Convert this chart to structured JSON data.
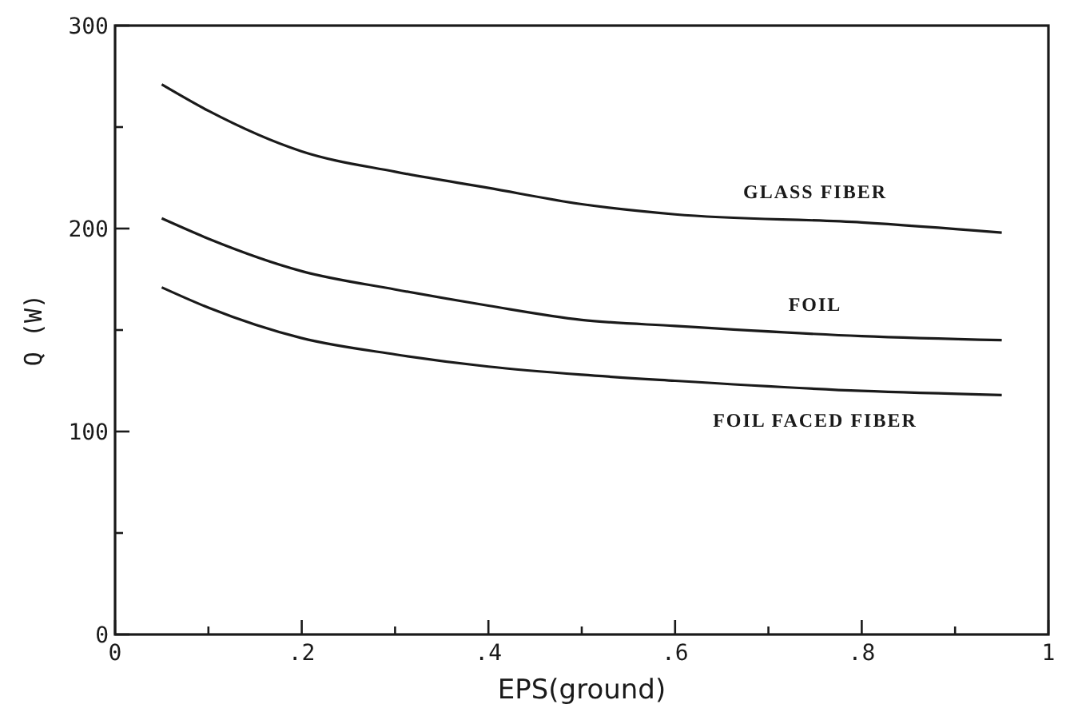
{
  "chart_data": {
    "type": "line",
    "xlabel": "EPS(ground)",
    "ylabel": "Q (W)",
    "x": [
      0.05,
      0.1,
      0.2,
      0.3,
      0.4,
      0.5,
      0.6,
      0.8,
      0.95
    ],
    "series": [
      {
        "name": "GLASS FIBER",
        "color": "#1a1a1a",
        "values": [
          271,
          258,
          238,
          228,
          220,
          212,
          207,
          203,
          198
        ]
      },
      {
        "name": "FOIL",
        "color": "#1a1a1a",
        "values": [
          205,
          195,
          179,
          170,
          162,
          155,
          152,
          147,
          145
        ]
      },
      {
        "name": "FOIL FACED FIBER",
        "color": "#1a1a1a",
        "values": [
          171,
          161,
          146,
          138,
          132,
          128,
          125,
          120,
          118
        ]
      }
    ],
    "xlim": [
      0,
      1
    ],
    "ylim": [
      0,
      300
    ],
    "xticks": [
      0,
      {
        "value": 0.1,
        "label": null
      },
      {
        "value": 0.2,
        "label": ".2"
      },
      {
        "value": 0.3,
        "label": null
      },
      {
        "value": 0.4,
        "label": ".4"
      },
      {
        "value": 0.5,
        "label": null
      },
      {
        "value": 0.6,
        "label": ".6"
      },
      {
        "value": 0.7,
        "label": null
      },
      {
        "value": 0.8,
        "label": ".8"
      },
      {
        "value": 0.9,
        "label": null
      },
      1
    ],
    "yticks": [
      0,
      {
        "value": 50,
        "label": null
      },
      100,
      {
        "value": 150,
        "label": null
      },
      200,
      {
        "value": 250,
        "label": null
      },
      300
    ],
    "grid": false,
    "marker": "none",
    "line_style": "solid"
  }
}
